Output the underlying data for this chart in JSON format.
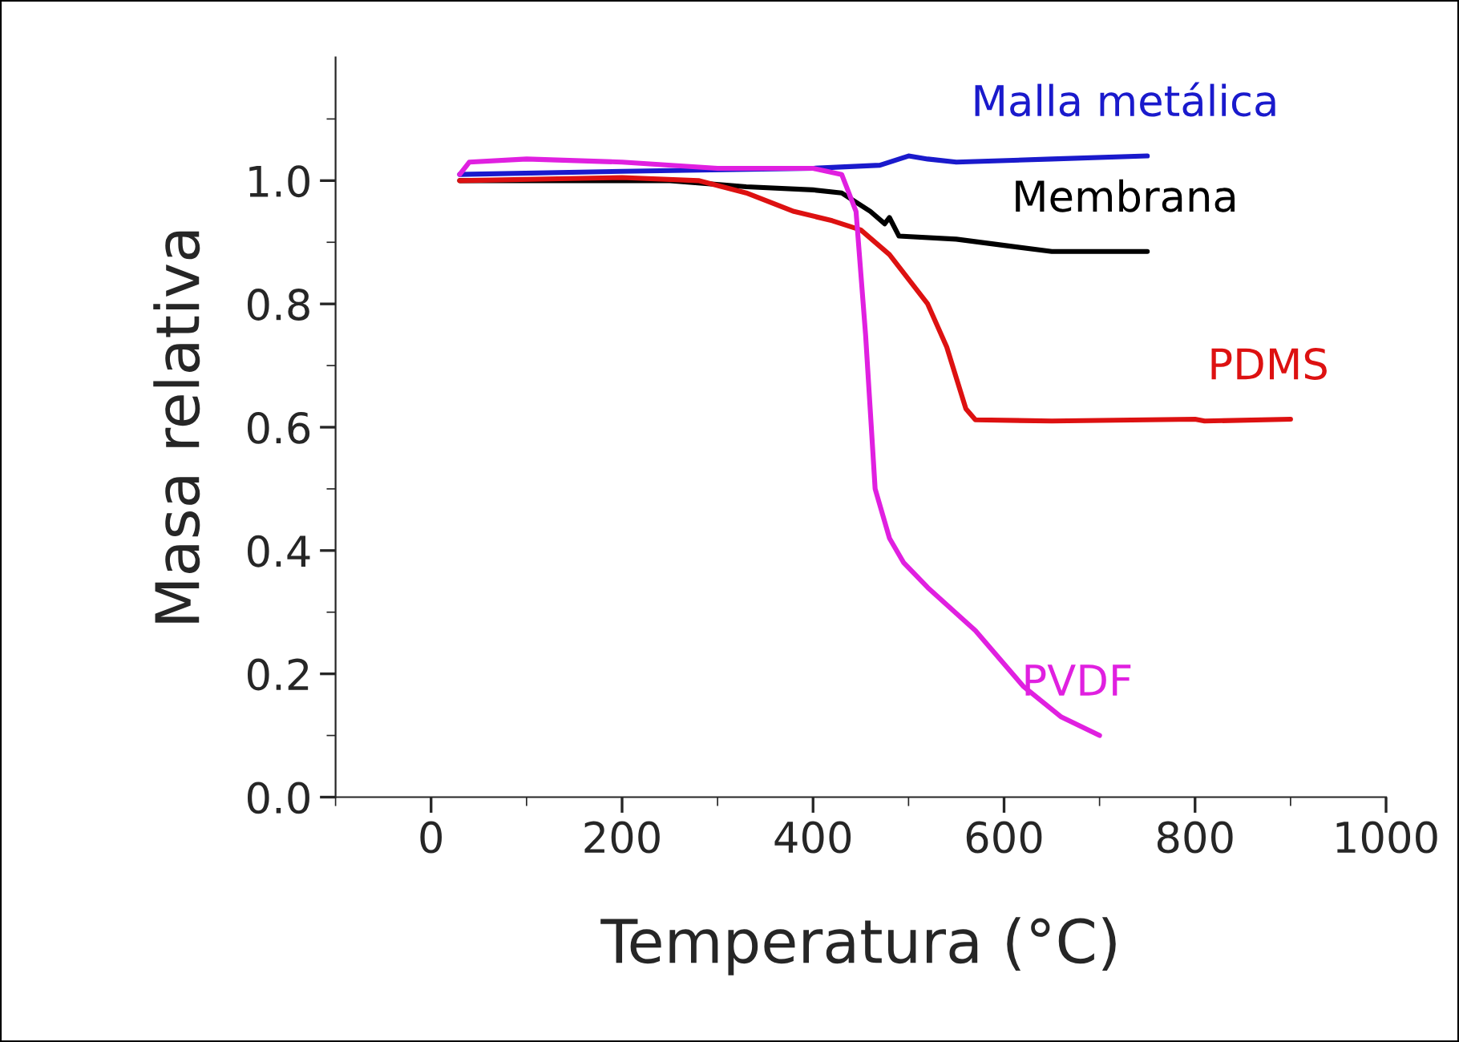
{
  "chart_data": {
    "type": "line",
    "xlabel": "Temperatura (°C)",
    "ylabel": "Masa relativa",
    "xlim": [
      -100,
      1000
    ],
    "xticks": [
      0,
      200,
      400,
      600,
      800,
      1000
    ],
    "ylim": [
      0,
      1.2
    ],
    "yticks": [
      {
        "value": 0,
        "label": "0.0"
      },
      0.2,
      0.4,
      0.6,
      0.8,
      {
        "value": 1,
        "label": "1.0"
      }
    ],
    "grid": false,
    "legend": false,
    "series": [
      {
        "name": "Malla metálica",
        "color": "#1a1acc",
        "x": [
          30,
          200,
          400,
          470,
          500,
          520,
          550,
          650,
          750
        ],
        "values": [
          1.01,
          1.015,
          1.02,
          1.025,
          1.04,
          1.035,
          1.03,
          1.035,
          1.04
        ]
      },
      {
        "name": "Membrana",
        "color": "#000000",
        "x": [
          30,
          250,
          330,
          400,
          430,
          460,
          475,
          480,
          490,
          550,
          600,
          650,
          750
        ],
        "values": [
          1.0,
          1.0,
          0.99,
          0.985,
          0.98,
          0.95,
          0.93,
          0.94,
          0.91,
          0.905,
          0.895,
          0.885,
          0.885
        ]
      },
      {
        "name": "PDMS",
        "color": "#dd1111",
        "x": [
          30,
          200,
          280,
          330,
          380,
          420,
          450,
          480,
          520,
          540,
          560,
          570,
          650,
          800,
          810,
          900
        ],
        "values": [
          1.0,
          1.005,
          1.0,
          0.98,
          0.95,
          0.935,
          0.92,
          0.88,
          0.8,
          0.73,
          0.63,
          0.612,
          0.61,
          0.613,
          0.61,
          0.613
        ]
      },
      {
        "name": "PVDF",
        "color": "#e020e0",
        "x": [
          30,
          40,
          100,
          200,
          300,
          400,
          430,
          445,
          455,
          465,
          480,
          495,
          520,
          570,
          620,
          660,
          700
        ],
        "values": [
          1.01,
          1.03,
          1.035,
          1.03,
          1.02,
          1.02,
          1.01,
          0.95,
          0.75,
          0.5,
          0.42,
          0.38,
          0.34,
          0.27,
          0.18,
          0.13,
          0.1
        ]
      }
    ]
  }
}
